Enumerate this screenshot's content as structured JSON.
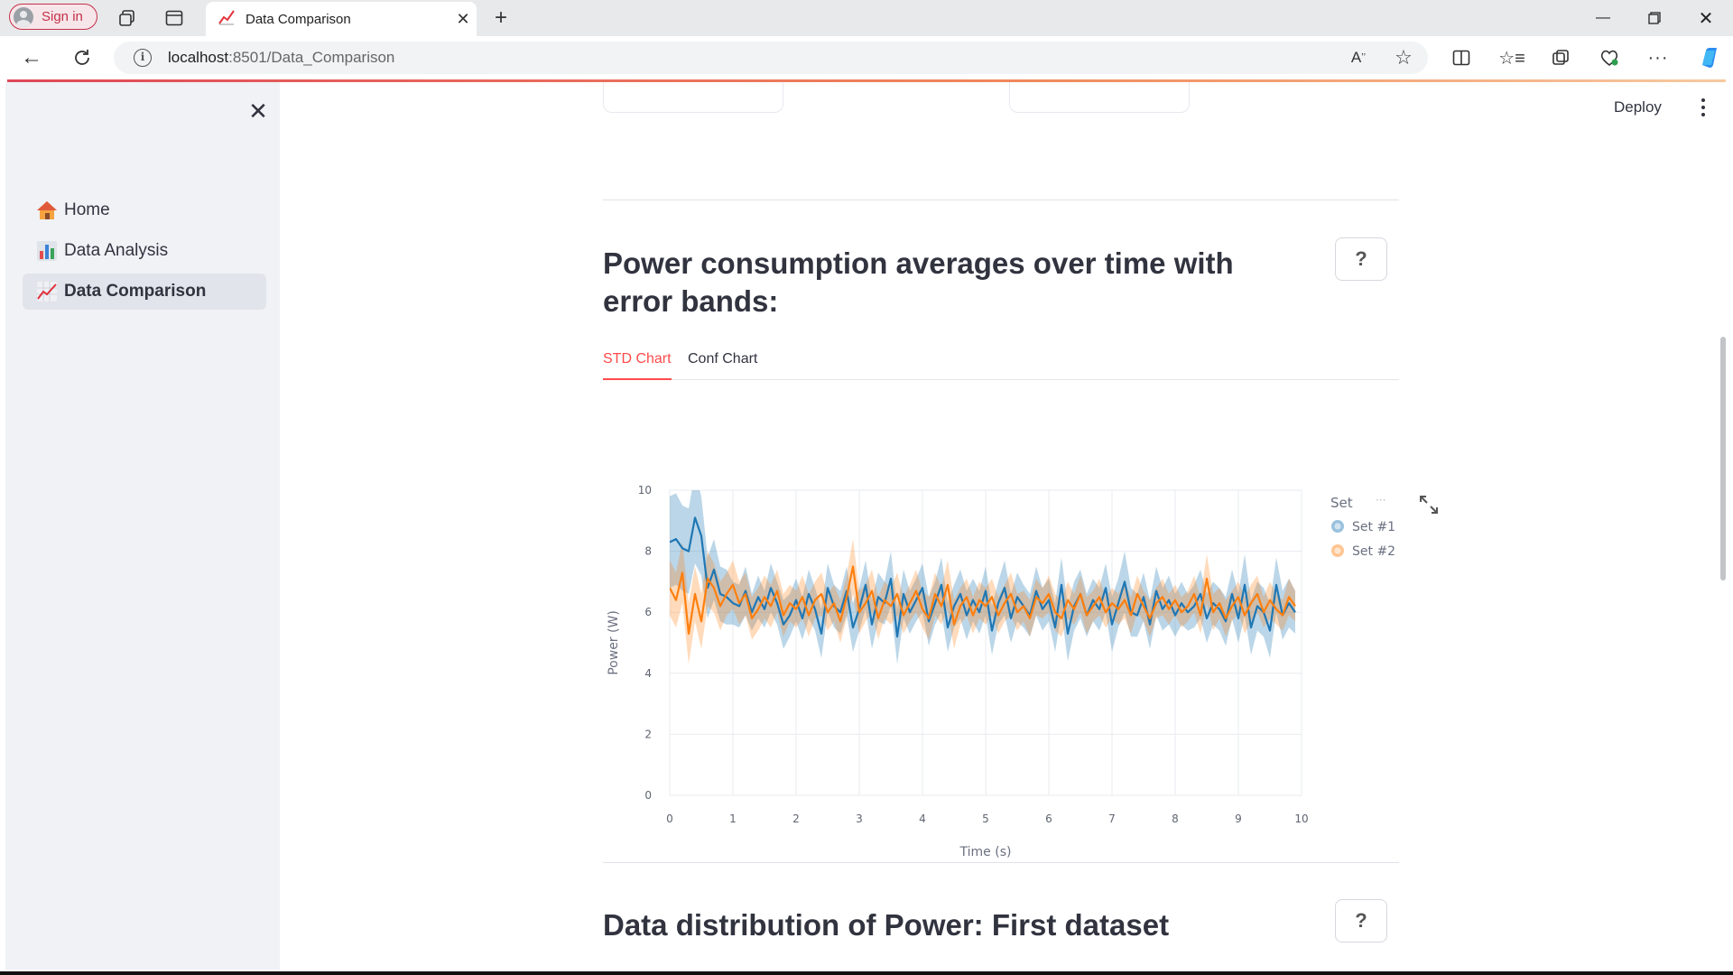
{
  "browser": {
    "signin_label": "Sign in",
    "tab_title": "Data Comparison",
    "url_host": "localhost",
    "url_path": ":8501/Data_Comparison"
  },
  "sidebar": {
    "items": [
      {
        "label": "Home",
        "icon": "house-icon",
        "active": false
      },
      {
        "label": "Data Analysis",
        "icon": "bar-chart-icon",
        "active": false
      },
      {
        "label": "Data Comparison",
        "icon": "chart-increasing-icon",
        "active": true
      }
    ]
  },
  "header": {
    "deploy_label": "Deploy"
  },
  "section1": {
    "title": "Power consumption averages over time with error bands:",
    "help": "?",
    "tabs": [
      {
        "label": "STD Chart",
        "active": true
      },
      {
        "label": "Conf Chart",
        "active": false
      }
    ]
  },
  "section2": {
    "title": "Data distribution of Power: First dataset",
    "help": "?"
  },
  "colors": {
    "accent": "#ff4b4b",
    "set1": "#1f77b4",
    "set2": "#ff7f0e"
  },
  "chart_data": {
    "type": "line",
    "xlabel": "Time (s)",
    "ylabel": "Power (W)",
    "xlim": [
      0,
      10
    ],
    "ylim": [
      0,
      10
    ],
    "x_ticks": [
      "0",
      "1",
      "2",
      "3",
      "4",
      "5",
      "6",
      "7",
      "8",
      "9",
      "10"
    ],
    "y_ticks": [
      "0",
      "2",
      "4",
      "6",
      "8",
      "10"
    ],
    "grid": true,
    "legend_title": "Set",
    "legend_placement": "top-right",
    "x": [
      0,
      0.1,
      0.2,
      0.3,
      0.4,
      0.5,
      0.6,
      0.7,
      0.8,
      0.9,
      1,
      1.1,
      1.2,
      1.3,
      1.4,
      1.5,
      1.6,
      1.7,
      1.8,
      1.9,
      2,
      2.1,
      2.2,
      2.3,
      2.4,
      2.5,
      2.6,
      2.7,
      2.8,
      2.9,
      3,
      3.1,
      3.2,
      3.3,
      3.4,
      3.5,
      3.6,
      3.7,
      3.8,
      3.9,
      4,
      4.1,
      4.2,
      4.3,
      4.4,
      4.5,
      4.6,
      4.7,
      4.8,
      4.9,
      5,
      5.1,
      5.2,
      5.3,
      5.4,
      5.5,
      5.6,
      5.7,
      5.8,
      5.9,
      6,
      6.1,
      6.2,
      6.3,
      6.4,
      6.5,
      6.6,
      6.7,
      6.8,
      6.9,
      7,
      7.1,
      7.2,
      7.3,
      7.4,
      7.5,
      7.6,
      7.7,
      7.8,
      7.9,
      8,
      8.1,
      8.2,
      8.3,
      8.4,
      8.5,
      8.6,
      8.7,
      8.8,
      8.9,
      9,
      9.1,
      9.2,
      9.3,
      9.4,
      9.5,
      9.6,
      9.7,
      9.8,
      9.9
    ],
    "series": [
      {
        "name": "Set #1",
        "color": "#1f77b4",
        "values": [
          8.3,
          8.4,
          8.1,
          8.0,
          9.1,
          8.5,
          6.8,
          7.4,
          6.6,
          6.5,
          6.3,
          6.2,
          6.7,
          6.0,
          6.5,
          6.1,
          6.8,
          6.3,
          5.6,
          5.9,
          6.4,
          5.8,
          6.6,
          6.1,
          5.3,
          6.8,
          6.2,
          6.0,
          6.7,
          5.5,
          6.1,
          6.9,
          5.6,
          6.5,
          6.3,
          7.1,
          5.2,
          6.6,
          6.0,
          6.4,
          6.8,
          5.7,
          6.3,
          6.9,
          5.5,
          6.2,
          6.6,
          5.9,
          6.4,
          6.0,
          6.7,
          5.4,
          6.3,
          6.8,
          5.8,
          6.5,
          6.2,
          5.9,
          6.7,
          6.1,
          6.4,
          5.5,
          6.9,
          5.3,
          6.2,
          6.6,
          5.9,
          6.4,
          6.1,
          6.8,
          5.6,
          6.3,
          7.0,
          6.0,
          5.9,
          6.5,
          5.6,
          6.7,
          6.1,
          6.4,
          5.9,
          6.3,
          6.0,
          6.2,
          6.6,
          5.8,
          6.3,
          6.1,
          5.7,
          6.6,
          5.8,
          6.9,
          5.5,
          6.2,
          6.0,
          5.4,
          6.9,
          5.9,
          6.3,
          6.0
        ],
        "std": [
          1.5,
          1.5,
          1.4,
          1.4,
          1.5,
          1.3,
          1.0,
          1.0,
          0.9,
          0.9,
          0.7,
          0.7,
          0.8,
          0.6,
          0.7,
          0.6,
          0.8,
          0.7,
          0.8,
          0.7,
          0.7,
          0.7,
          0.8,
          0.7,
          0.8,
          0.8,
          0.7,
          0.7,
          0.8,
          0.8,
          0.7,
          0.8,
          0.8,
          0.8,
          0.7,
          0.9,
          0.9,
          0.8,
          0.7,
          0.7,
          0.8,
          0.8,
          0.7,
          0.9,
          0.8,
          0.7,
          0.8,
          0.8,
          0.7,
          0.7,
          0.8,
          0.8,
          0.7,
          0.9,
          0.8,
          0.8,
          0.7,
          0.7,
          0.8,
          0.7,
          0.7,
          0.8,
          0.9,
          0.9,
          0.8,
          0.8,
          0.7,
          0.7,
          0.7,
          0.8,
          0.9,
          0.8,
          1.0,
          0.8,
          0.7,
          0.8,
          0.8,
          0.8,
          0.7,
          0.8,
          0.7,
          0.7,
          0.6,
          0.7,
          0.8,
          0.8,
          0.7,
          0.7,
          0.8,
          0.8,
          0.8,
          1.0,
          0.9,
          0.8,
          0.8,
          0.9,
          0.9,
          0.8,
          0.8,
          0.7
        ]
      },
      {
        "name": "Set #2",
        "color": "#ff7f0e",
        "values": [
          6.8,
          6.4,
          7.3,
          5.3,
          6.6,
          5.7,
          7.1,
          6.8,
          6.2,
          6.6,
          6.9,
          6.3,
          6.6,
          5.8,
          6.1,
          6.5,
          6.2,
          6.7,
          5.9,
          6.3,
          6.1,
          6.5,
          5.9,
          6.4,
          6.6,
          6.0,
          6.3,
          5.7,
          6.5,
          7.5,
          6.0,
          6.3,
          6.7,
          5.8,
          6.4,
          6.2,
          6.6,
          5.9,
          6.3,
          6.7,
          6.1,
          5.8,
          6.6,
          6.2,
          6.9,
          5.6,
          6.2,
          6.5,
          5.9,
          6.4,
          6.2,
          6.5,
          5.9,
          6.3,
          6.6,
          6.0,
          6.2,
          5.8,
          6.5,
          6.3,
          6.6,
          6.0,
          5.8,
          6.4,
          6.1,
          6.6,
          5.9,
          6.2,
          6.5,
          6.0,
          6.3,
          6.1,
          6.4,
          5.9,
          6.6,
          6.2,
          5.8,
          6.3,
          6.5,
          6.1,
          6.4,
          6.0,
          6.2,
          6.6,
          5.9,
          7.1,
          6.0,
          6.3,
          5.8,
          6.2,
          6.5,
          5.9,
          6.3,
          6.6,
          6.0,
          6.4,
          6.1,
          5.9,
          6.5,
          6.2
        ],
        "std": [
          0.9,
          0.9,
          1.0,
          1.0,
          0.9,
          0.9,
          0.9,
          0.8,
          0.8,
          0.7,
          0.8,
          0.7,
          0.7,
          0.7,
          0.7,
          0.7,
          0.7,
          0.7,
          0.7,
          0.6,
          0.6,
          0.7,
          0.7,
          0.6,
          0.7,
          0.6,
          0.6,
          0.7,
          0.7,
          0.9,
          0.7,
          0.6,
          0.7,
          0.7,
          0.6,
          0.6,
          0.7,
          0.6,
          0.6,
          0.7,
          0.6,
          0.7,
          0.7,
          0.6,
          0.8,
          0.8,
          0.6,
          0.6,
          0.6,
          0.6,
          0.6,
          0.6,
          0.6,
          0.6,
          0.7,
          0.6,
          0.5,
          0.6,
          0.6,
          0.5,
          0.6,
          0.6,
          0.6,
          0.6,
          0.5,
          0.6,
          0.6,
          0.5,
          0.6,
          0.5,
          0.5,
          0.5,
          0.6,
          0.6,
          0.6,
          0.5,
          0.6,
          0.5,
          0.6,
          0.5,
          0.5,
          0.5,
          0.5,
          0.6,
          0.6,
          0.8,
          0.6,
          0.5,
          0.6,
          0.5,
          0.5,
          0.6,
          0.6,
          0.6,
          0.5,
          0.6,
          0.5,
          0.5,
          0.6,
          0.5
        ]
      }
    ]
  }
}
